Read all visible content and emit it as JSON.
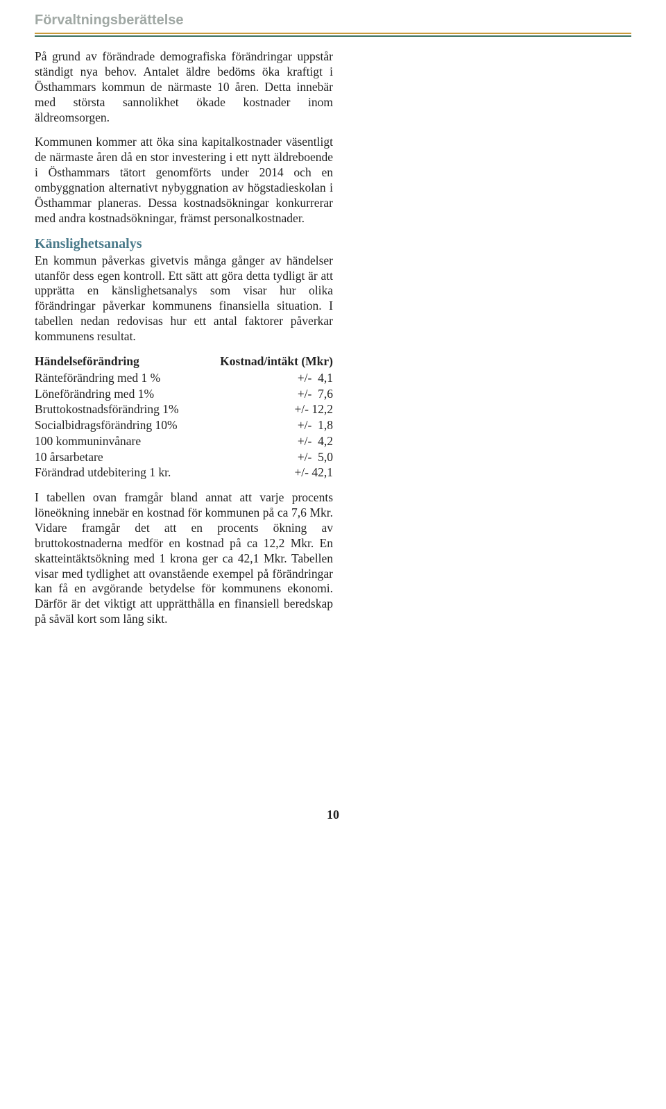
{
  "header": {
    "title": "Förvaltningsberättelse"
  },
  "paragraphs": {
    "p1": "På grund av förändrade demografiska förändringar uppstår ständigt nya behov. Antalet äldre bedöms öka kraftigt i Östhammars kommun de närmaste 10 åren. Detta innebär med största sannolikhet ökade kostnader inom äldreomsorgen.",
    "p2": "Kommunen kommer att öka sina kapitalkostnader väsentligt de närmaste åren då en stor investering i ett nytt äldreboende i Östhammars tätort genomförts under 2014 och en ombyggnation alternativt nybyggnation av högstadieskolan i Östhammar planeras. Dessa kostnadsökningar konkurrerar med andra kostnadsökningar, främst personalkostnader.",
    "subheading": "Känslighetsanalys",
    "p3": "En kommun påverkas givetvis många gånger av händelser utanför dess egen kontroll. Ett sätt att göra detta tydligt är att upprätta en känslighetsanalys som visar hur olika förändringar påverkar kommunens finansiella situation. I tabellen nedan redovisas hur ett antal faktorer påverkar kommunens resultat.",
    "p4": "I tabellen ovan framgår bland annat att varje procents löneökning innebär en kostnad för kommunen på ca 7,6 Mkr. Vidare framgår det att en procents ökning av bruttokostnaderna medför en kostnad på ca 12,2 Mkr. En skatteintäktsökning med 1 krona ger ca 42,1 Mkr. Tabellen visar med tydlighet att ovanstående exempel på förändringar kan få en avgörande betydelse för kommunens ekonomi. Därför är det viktigt att upprätthålla en finansiell beredskap på såväl kort som lång sikt."
  },
  "table": {
    "header_left": "Händelseförändring",
    "header_right": "Kostnad/intäkt (Mkr)",
    "rows": [
      {
        "label": "Ränteförändring med 1 %",
        "value": "+/-  4,1"
      },
      {
        "label": "Löneförändring med 1%",
        "value": "+/-  7,6"
      },
      {
        "label": "Bruttokostnadsförändring 1%",
        "value": "+/- 12,2"
      },
      {
        "label": "Socialbidragsförändring 10%",
        "value": "+/-  1,8"
      },
      {
        "label": "100 kommuninvånare",
        "value": "+/-  4,2"
      },
      {
        "label": "10 årsarbetare",
        "value": "+/-  5,0"
      },
      {
        "label": "Förändrad utdebitering 1 kr.",
        "value": "+/- 42,1"
      }
    ]
  },
  "page_number": "10"
}
